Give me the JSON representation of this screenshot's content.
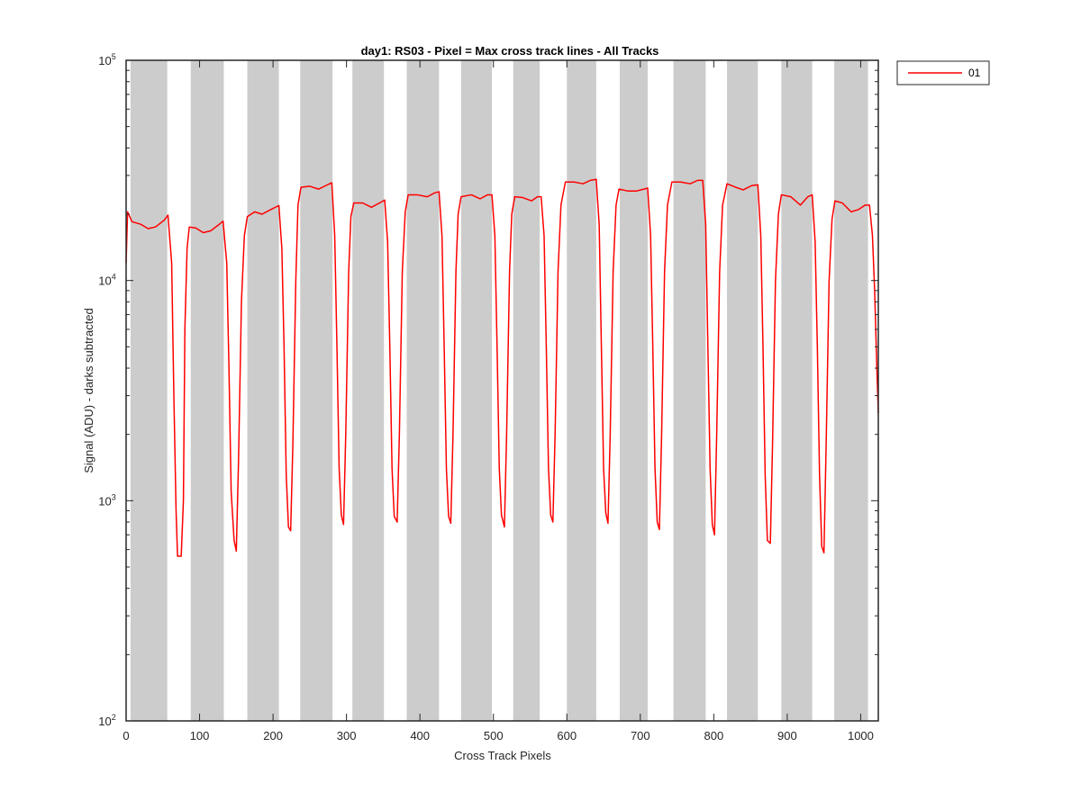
{
  "chart_data": {
    "type": "line",
    "title": "day1: RS03 - Pixel = Max cross track lines - All Tracks",
    "xlabel": "Cross Track Pixels",
    "ylabel": "Signal (ADU) - darks subtracted",
    "xlim": [
      0,
      1024
    ],
    "ylim": [
      100,
      100000
    ],
    "yscale": "log",
    "grid": false,
    "legend_position": "top-right, outside plot",
    "x_ticks": [
      "0",
      "100",
      "200",
      "300",
      "400",
      "500",
      "600",
      "700",
      "800",
      "900",
      "1000"
    ],
    "y_ticks": [
      {
        "base": "10",
        "exp": "2"
      },
      {
        "base": "10",
        "exp": "3"
      },
      {
        "base": "10",
        "exp": "4"
      },
      {
        "base": "10",
        "exp": "5"
      }
    ],
    "gray_bands": [
      [
        6,
        56
      ],
      [
        88,
        133
      ],
      [
        165,
        208
      ],
      [
        237,
        281
      ],
      [
        308,
        351
      ],
      [
        382,
        426
      ],
      [
        456,
        498
      ],
      [
        527,
        563
      ],
      [
        600,
        640
      ],
      [
        672,
        710
      ],
      [
        745,
        789
      ],
      [
        818,
        860
      ],
      [
        892,
        934
      ],
      [
        964,
        1010
      ]
    ],
    "series": [
      {
        "name": "01",
        "color": "#ff0000",
        "points": [
          [
            0,
            12000
          ],
          [
            2,
            20500
          ],
          [
            8,
            18500
          ],
          [
            20,
            18000
          ],
          [
            30,
            17200
          ],
          [
            40,
            17500
          ],
          [
            52,
            18800
          ],
          [
            57,
            19800
          ],
          [
            62,
            12000
          ],
          [
            65,
            3000
          ],
          [
            68,
            900
          ],
          [
            70,
            560
          ],
          [
            75,
            560
          ],
          [
            78,
            1000
          ],
          [
            80,
            6000
          ],
          [
            83,
            14000
          ],
          [
            86,
            17500
          ],
          [
            95,
            17300
          ],
          [
            105,
            16500
          ],
          [
            115,
            16800
          ],
          [
            125,
            17800
          ],
          [
            132,
            18600
          ],
          [
            137,
            12000
          ],
          [
            140,
            4000
          ],
          [
            143,
            1100
          ],
          [
            147,
            660
          ],
          [
            150,
            590
          ],
          [
            153,
            1500
          ],
          [
            157,
            8000
          ],
          [
            161,
            16000
          ],
          [
            165,
            19500
          ],
          [
            175,
            20500
          ],
          [
            185,
            20000
          ],
          [
            197,
            21000
          ],
          [
            208,
            21900
          ],
          [
            212,
            14000
          ],
          [
            215,
            5000
          ],
          [
            218,
            1300
          ],
          [
            221,
            760
          ],
          [
            224,
            730
          ],
          [
            227,
            1800
          ],
          [
            231,
            10000
          ],
          [
            234,
            22000
          ],
          [
            238,
            26500
          ],
          [
            250,
            26800
          ],
          [
            262,
            26000
          ],
          [
            272,
            27000
          ],
          [
            280,
            27800
          ],
          [
            284,
            16000
          ],
          [
            287,
            5000
          ],
          [
            290,
            1400
          ],
          [
            293,
            860
          ],
          [
            296,
            780
          ],
          [
            299,
            2000
          ],
          [
            303,
            11000
          ],
          [
            306,
            19500
          ],
          [
            310,
            22500
          ],
          [
            322,
            22500
          ],
          [
            334,
            21500
          ],
          [
            345,
            22500
          ],
          [
            352,
            23200
          ],
          [
            356,
            15000
          ],
          [
            359,
            5000
          ],
          [
            362,
            1400
          ],
          [
            365,
            850
          ],
          [
            369,
            800
          ],
          [
            372,
            2000
          ],
          [
            376,
            11000
          ],
          [
            380,
            20500
          ],
          [
            384,
            24500
          ],
          [
            396,
            24500
          ],
          [
            410,
            24000
          ],
          [
            420,
            25000
          ],
          [
            426,
            25300
          ],
          [
            430,
            16000
          ],
          [
            433,
            5000
          ],
          [
            436,
            1400
          ],
          [
            439,
            850
          ],
          [
            442,
            790
          ],
          [
            445,
            2000
          ],
          [
            449,
            11000
          ],
          [
            452,
            20000
          ],
          [
            456,
            24000
          ],
          [
            470,
            24500
          ],
          [
            482,
            23500
          ],
          [
            492,
            24500
          ],
          [
            498,
            24500
          ],
          [
            502,
            16000
          ],
          [
            505,
            5000
          ],
          [
            508,
            1400
          ],
          [
            511,
            860
          ],
          [
            515,
            760
          ],
          [
            518,
            2000
          ],
          [
            522,
            11000
          ],
          [
            525,
            20000
          ],
          [
            529,
            24000
          ],
          [
            540,
            23800
          ],
          [
            552,
            23000
          ],
          [
            560,
            24000
          ],
          [
            565,
            24000
          ],
          [
            569,
            16000
          ],
          [
            572,
            5000
          ],
          [
            575,
            1400
          ],
          [
            578,
            860
          ],
          [
            581,
            800
          ],
          [
            584,
            2000
          ],
          [
            588,
            11000
          ],
          [
            592,
            22000
          ],
          [
            598,
            28000
          ],
          [
            610,
            28000
          ],
          [
            622,
            27500
          ],
          [
            632,
            28500
          ],
          [
            640,
            28800
          ],
          [
            644,
            18000
          ],
          [
            647,
            5000
          ],
          [
            650,
            1400
          ],
          [
            653,
            880
          ],
          [
            656,
            790
          ],
          [
            659,
            2000
          ],
          [
            663,
            11000
          ],
          [
            667,
            22000
          ],
          [
            671,
            26000
          ],
          [
            683,
            25500
          ],
          [
            695,
            25500
          ],
          [
            705,
            26000
          ],
          [
            710,
            26300
          ],
          [
            714,
            16000
          ],
          [
            717,
            5000
          ],
          [
            720,
            1400
          ],
          [
            723,
            800
          ],
          [
            726,
            740
          ],
          [
            729,
            2000
          ],
          [
            733,
            11000
          ],
          [
            737,
            22000
          ],
          [
            743,
            28000
          ],
          [
            755,
            28000
          ],
          [
            768,
            27500
          ],
          [
            778,
            28500
          ],
          [
            785,
            28500
          ],
          [
            789,
            18000
          ],
          [
            792,
            5000
          ],
          [
            795,
            1400
          ],
          [
            798,
            780
          ],
          [
            801,
            700
          ],
          [
            804,
            2000
          ],
          [
            808,
            11000
          ],
          [
            812,
            22000
          ],
          [
            818,
            27500
          ],
          [
            830,
            26500
          ],
          [
            840,
            25800
          ],
          [
            852,
            27000
          ],
          [
            860,
            27200
          ],
          [
            864,
            16000
          ],
          [
            867,
            5000
          ],
          [
            870,
            1300
          ],
          [
            873,
            660
          ],
          [
            877,
            640
          ],
          [
            880,
            1800
          ],
          [
            884,
            10000
          ],
          [
            888,
            20000
          ],
          [
            892,
            24500
          ],
          [
            905,
            24000
          ],
          [
            918,
            22000
          ],
          [
            928,
            24000
          ],
          [
            934,
            24500
          ],
          [
            938,
            15000
          ],
          [
            941,
            5000
          ],
          [
            944,
            1300
          ],
          [
            947,
            620
          ],
          [
            950,
            580
          ],
          [
            953,
            1800
          ],
          [
            957,
            10000
          ],
          [
            961,
            19000
          ],
          [
            965,
            23000
          ],
          [
            975,
            22500
          ],
          [
            987,
            20500
          ],
          [
            997,
            21000
          ],
          [
            1006,
            22000
          ],
          [
            1012,
            22000
          ],
          [
            1016,
            16000
          ],
          [
            1019,
            9000
          ],
          [
            1022,
            4000
          ],
          [
            1024,
            2500
          ]
        ]
      }
    ]
  }
}
